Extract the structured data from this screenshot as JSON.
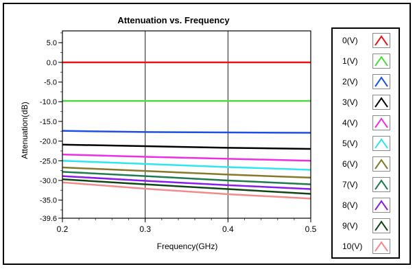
{
  "chart_data": {
    "type": "line",
    "title": "Attenuation vs. Frequency",
    "xlabel": "Frequency(GHz)",
    "ylabel": "Attenuation(dB)",
    "x": [
      0.2,
      0.3,
      0.4,
      0.5
    ],
    "xlim": [
      0.2,
      0.5
    ],
    "ylim": [
      -39.6,
      8.0
    ],
    "xticks": [
      "0.2",
      "0.3",
      "0.4",
      "0.5"
    ],
    "yticks": [
      {
        "value": 5.0,
        "label": "5.0"
      },
      {
        "value": 0.0,
        "label": "0.0"
      },
      {
        "value": -5.0,
        "label": "-5.0"
      },
      {
        "value": -10.0,
        "label": "-10.0"
      },
      {
        "value": -15.0,
        "label": "-15.0"
      },
      {
        "value": -20.0,
        "label": "-20.0"
      },
      {
        "value": -25.0,
        "label": "-25.0"
      },
      {
        "value": -30.0,
        "label": "-30.0"
      },
      {
        "value": -35.0,
        "label": "-35.0"
      },
      {
        "value": -39.6,
        "label": "-39.6"
      }
    ],
    "grid": "vertical",
    "legend_position": "right",
    "series": [
      {
        "name": "0(V)",
        "color": "#e8141b",
        "values": [
          0.0,
          0.0,
          0.0,
          0.0
        ]
      },
      {
        "name": "1(V)",
        "color": "#4bdc3c",
        "values": [
          -9.8,
          -9.8,
          -9.8,
          -9.8
        ]
      },
      {
        "name": "2(V)",
        "color": "#1f4fe0",
        "values": [
          -17.4,
          -17.7,
          -17.8,
          -17.9
        ]
      },
      {
        "name": "3(V)",
        "color": "#000000",
        "values": [
          -20.9,
          -21.3,
          -21.7,
          -22.0
        ]
      },
      {
        "name": "4(V)",
        "color": "#ee2ee6",
        "values": [
          -23.4,
          -24.0,
          -24.5,
          -25.0
        ]
      },
      {
        "name": "5(V)",
        "color": "#2ee6ee",
        "values": [
          -25.0,
          -25.8,
          -26.6,
          -27.3
        ]
      },
      {
        "name": "6(V)",
        "color": "#86782a",
        "values": [
          -26.7,
          -27.6,
          -28.5,
          -29.3
        ]
      },
      {
        "name": "7(V)",
        "color": "#1f7a4e",
        "values": [
          -27.8,
          -28.9,
          -30.0,
          -31.0
        ]
      },
      {
        "name": "8(V)",
        "color": "#8a1ee8",
        "values": [
          -28.9,
          -30.1,
          -31.2,
          -32.2
        ]
      },
      {
        "name": "9(V)",
        "color": "#114416",
        "values": [
          -29.7,
          -31.0,
          -32.2,
          -33.4
        ]
      },
      {
        "name": "10(V)",
        "color": "#f28b8b",
        "values": [
          -30.5,
          -32.1,
          -33.5,
          -34.6
        ]
      }
    ]
  }
}
